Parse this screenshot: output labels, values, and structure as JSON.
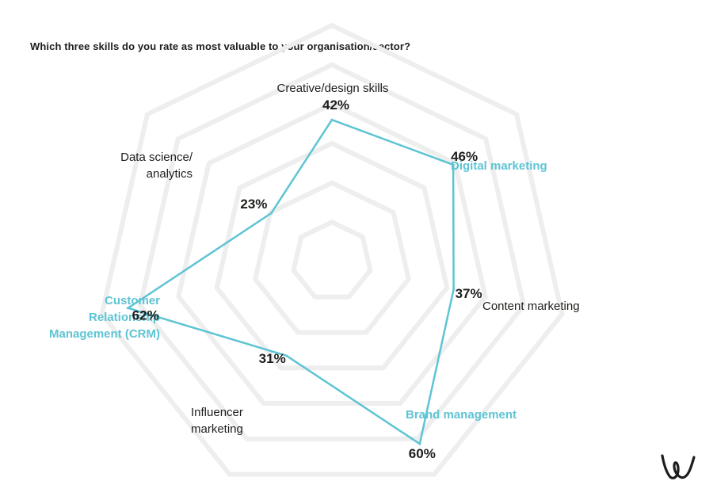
{
  "question": "Which three skills do you rate as most valuable to your organisation/sector?",
  "chart_data": {
    "type": "radar",
    "title": "Which three skills do you rate as most valuable to your organisation/sector?",
    "categories": [
      {
        "lines": [
          "Creative/design skills"
        ],
        "highlight": false
      },
      {
        "lines": [
          "Digital marketing"
        ],
        "highlight": true
      },
      {
        "lines": [
          "Content marketing"
        ],
        "highlight": false
      },
      {
        "lines": [
          "Brand management"
        ],
        "highlight": true
      },
      {
        "lines": [
          "Influencer",
          "marketing"
        ],
        "highlight": false
      },
      {
        "lines": [
          "Customer",
          "Relationship",
          "Management (CRM)"
        ],
        "highlight": true
      },
      {
        "lines": [
          "Data science/",
          "analytics"
        ],
        "highlight": false
      }
    ],
    "values": [
      42,
      46,
      37,
      60,
      31,
      62,
      23
    ],
    "value_labels": [
      "42%",
      "46%",
      "37%",
      "60%",
      "31%",
      "62%",
      "23%"
    ],
    "unit": "%",
    "rmax": 70,
    "rings": 6,
    "colors": {
      "series": "#5ec4d4",
      "highlight_label": "#5ec4d4",
      "grid": "#eeeeee"
    }
  },
  "logo": {
    "icon": "w-brand-logo"
  }
}
